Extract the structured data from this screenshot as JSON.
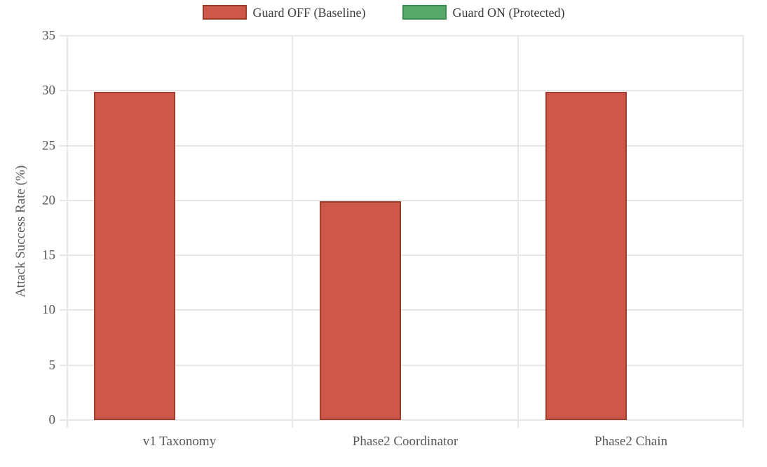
{
  "chart_data": {
    "type": "bar",
    "title": "",
    "categories": [
      "v1 Taxonomy",
      "Phase2 Coordinator",
      "Phase2 Chain"
    ],
    "series": [
      {
        "name": "Guard OFF (Baseline)",
        "values": [
          29.9,
          19.9,
          29.9
        ],
        "fill": "#cd5748",
        "border": "#a13b2c"
      },
      {
        "name": "Guard ON (Protected)",
        "values": [
          0,
          0,
          0
        ],
        "fill": "#58a86a",
        "border": "#3e8e50"
      }
    ],
    "xlabel": "",
    "ylabel": "Attack Success Rate (%)",
    "ylim": [
      0,
      35
    ],
    "yticks": [
      0,
      5,
      10,
      15,
      20,
      25,
      30,
      35
    ],
    "grid": true,
    "legend_position": "top"
  },
  "colors": {
    "grid": "#e7e7e7",
    "tick_label": "#595959",
    "axis_title": "#595959",
    "legend_text": "#3a3a3a",
    "background": "#ffffff"
  }
}
